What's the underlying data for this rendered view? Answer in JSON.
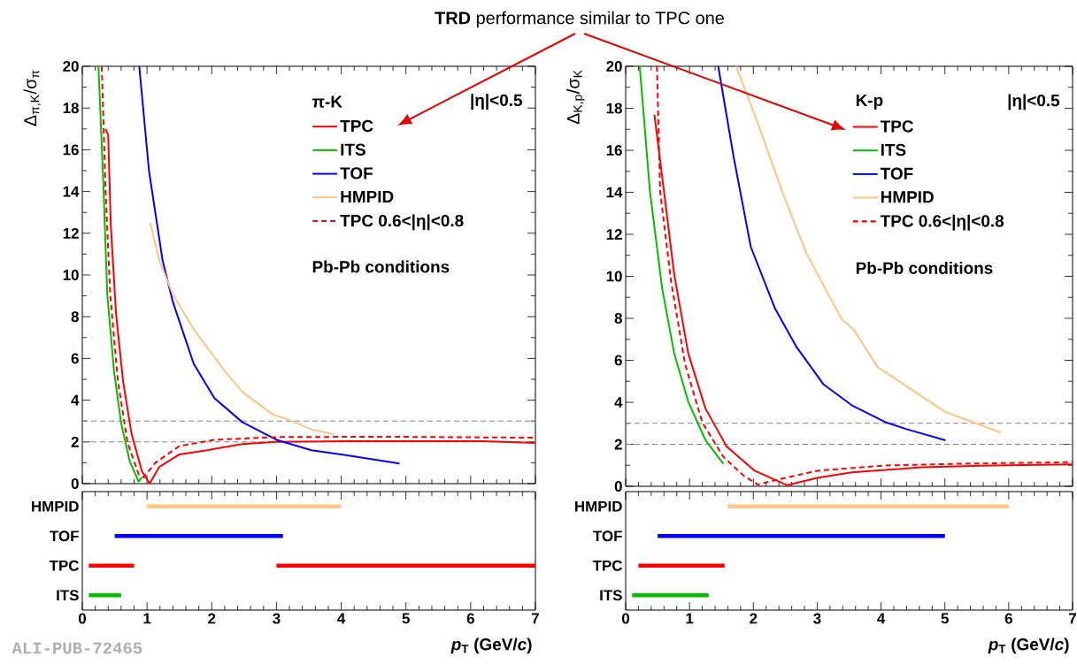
{
  "chart_data": [
    {
      "type": "line",
      "ylabel": "Δ$_{π,K}$/σ$_{π}$",
      "xlim": [
        0,
        7
      ],
      "ylim": [
        0,
        20
      ],
      "xticks": [
        0,
        1,
        2,
        3,
        4,
        5,
        6,
        7
      ],
      "yticks": [
        0,
        2,
        4,
        6,
        8,
        10,
        12,
        14,
        16,
        18,
        20
      ],
      "tick_labels": "y",
      "legend": "top right",
      "annotations": [
        "π-K",
        "|η|<0.5",
        "Pb-Pb conditions",
        "**TRD** performance similar to TPC one"
      ],
      "ref_lines": [
        {
          "axis": "y",
          "value": 3,
          "color": "#808080",
          "line_style": "dashed"
        },
        {
          "axis": "y",
          "value": 2,
          "color": "#808080",
          "line_style": "dashed"
        }
      ],
      "series": [
        {
          "name": "TPC",
          "color": "#ff0000",
          "x": [
            0.36,
            0.4,
            0.44,
            0.52,
            0.63,
            0.76,
            0.92,
            1.04,
            1.19,
            1.5,
            1.93,
            2.47,
            3.0,
            4.07,
            5.14,
            6.2,
            7
          ],
          "values": [
            17,
            16.7,
            12.4,
            8.2,
            4.9,
            2.4,
            0.6,
            0,
            0.8,
            1.4,
            1.6,
            1.9,
            2.0,
            2.03,
            2.03,
            2.03,
            1.95
          ]
        },
        {
          "name": "ITS",
          "color": "#00c000",
          "x": [
            0.25,
            0.33,
            0.385,
            0.49,
            0.6,
            0.73,
            0.87,
            0.92
          ],
          "values": [
            20,
            14,
            9.1,
            5.4,
            2.9,
            1.1,
            0.1,
            0.3
          ]
        },
        {
          "name": "TOF",
          "color": "#0000ff",
          "x": [
            0.88,
            1.03,
            1.24,
            1.4,
            1.72,
            2.04,
            2.47,
            3.0,
            3.54,
            4.07,
            4.9
          ],
          "values": [
            20,
            15,
            10.7,
            8.7,
            5.75,
            4.1,
            2.95,
            2.1,
            1.6,
            1.37,
            0.96
          ]
        },
        {
          "name": "HMPID",
          "color": "#fdc57f",
          "x": [
            1.05,
            1.19,
            1.4,
            1.72,
            2.2,
            2.47,
            2.95,
            3.16,
            3.54,
            3.89
          ],
          "values": [
            12.5,
            10.7,
            9.06,
            7.4,
            5.4,
            4.4,
            3.3,
            3.1,
            2.6,
            2.36
          ]
        },
        {
          "name": "TPC 0.6<|η|<0.8",
          "color": "#ff0000",
          "line_style": "dashed",
          "x": [
            0.3,
            0.36,
            0.43,
            0.55,
            0.7,
            0.87,
            0.95,
            1.13,
            1.5,
            2.04,
            3.0,
            4.6,
            7
          ],
          "values": [
            20,
            14,
            9.1,
            4.9,
            1.95,
            0.45,
            0.3,
            1.0,
            1.8,
            2.1,
            2.23,
            2.25,
            2.2
          ]
        }
      ]
    },
    {
      "type": "line",
      "ylabel": "Δ$_{K,p}$/σ$_{K}$",
      "xlim": [
        0,
        7
      ],
      "ylim": [
        0,
        20
      ],
      "xticks": [
        0,
        1,
        2,
        3,
        4,
        5,
        6,
        7
      ],
      "yticks": [
        0,
        2,
        4,
        6,
        8,
        10,
        12,
        14,
        16,
        18,
        20
      ],
      "tick_labels": "y",
      "legend": "top right",
      "annotations": [
        "K-p",
        "|η|<0.5",
        "Pb-Pb conditions"
      ],
      "ref_lines": [
        {
          "axis": "y",
          "value": 3,
          "color": "#808080",
          "line_style": "dashed"
        },
        {
          "axis": "y",
          "value": 2,
          "color": "#808080",
          "line_style": "dashed"
        }
      ],
      "series": [
        {
          "name": "TPC",
          "color": "#ff0000",
          "x": [
            0.45,
            0.6,
            0.76,
            0.98,
            1.25,
            1.58,
            2.02,
            2.53,
            3.0,
            3.54,
            4.63,
            5.72,
            7
          ],
          "values": [
            17.7,
            14.05,
            10.1,
            6.33,
            3.7,
            1.9,
            0.74,
            0.05,
            0.4,
            0.66,
            0.9,
            0.99,
            1.04
          ]
        },
        {
          "name": "ITS",
          "color": "#00c000",
          "x": [
            0.22,
            0.38,
            0.57,
            0.76,
            0.98,
            1.25,
            1.53
          ],
          "values": [
            20,
            14.05,
            9.45,
            6.33,
            4.03,
            2.2,
            1.07
          ]
        },
        {
          "name": "TOF",
          "color": "#0000ff",
          "x": [
            1.45,
            1.69,
            1.96,
            2.34,
            2.67,
            3.1,
            3.54,
            4.08,
            4.41,
            5.01
          ],
          "values": [
            20,
            15.7,
            11.4,
            8.46,
            6.66,
            4.85,
            3.86,
            3.04,
            2.71,
            2.19
          ]
        },
        {
          "name": "HMPID",
          "color": "#fdc57f",
          "x": [
            1.73,
            2.07,
            2.45,
            2.83,
            3.38,
            3.57,
            3.95,
            4.36,
            5.01,
            5.45,
            5.88
          ],
          "values": [
            20,
            17.3,
            14.05,
            11.1,
            7.97,
            7.46,
            5.67,
            4.85,
            3.53,
            3.04,
            2.55
          ]
        },
        {
          "name": "TPC 0.6<|η|<0.8",
          "color": "#ff0000",
          "line_style": "dashed",
          "x": [
            0.49,
            0.54,
            0.71,
            0.93,
            1.2,
            1.53,
            1.85,
            2.07,
            2.4,
            3.0,
            4.08,
            5.17,
            7
          ],
          "values": [
            20,
            14.05,
            9.78,
            5.83,
            3.04,
            1.4,
            0.5,
            0.08,
            0.33,
            0.74,
            0.99,
            1.07,
            1.15
          ]
        }
      ]
    },
    {
      "type": "bar",
      "orientation": "horizontal",
      "xlabel": "*p*$_{T}$ (GeV/*c*)",
      "xlim": [
        0,
        7
      ],
      "xticks": [
        0,
        1,
        2,
        3,
        4,
        5,
        6,
        7
      ],
      "annotations": [
        "ALI-PUB-72465"
      ],
      "categories": [
        "HMPID",
        "TOF",
        "TPC",
        "ITS"
      ],
      "series": [
        {
          "base": [
            1,
            0.5,
            0.1,
            0.1
          ],
          "values": [
            3,
            2.6,
            0.7,
            0.5
          ],
          "colors": [
            "#fdc57f",
            "#0000ff",
            "#ff0000",
            "#00c000"
          ]
        },
        {
          "base": [
            null,
            null,
            3,
            null
          ],
          "values": [
            null,
            null,
            4,
            null
          ],
          "colors": [
            null,
            null,
            "#ff0000",
            null
          ]
        }
      ]
    },
    {
      "type": "bar",
      "orientation": "horizontal",
      "xlabel": "*p*$_{T}$ (GeV/*c*)",
      "xlim": [
        0,
        7
      ],
      "xticks": [
        0,
        1,
        2,
        3,
        4,
        5,
        6,
        7
      ],
      "categories": [
        "HMPID",
        "TOF",
        "TPC",
        "ITS"
      ],
      "series": [
        {
          "base": [
            1.6,
            0.5,
            0.2,
            0.1
          ],
          "values": [
            4.4,
            4.5,
            1.35,
            1.2
          ],
          "colors": [
            "#fdc57f",
            "#0000ff",
            "#ff0000",
            "#00c000"
          ]
        }
      ]
    }
  ]
}
